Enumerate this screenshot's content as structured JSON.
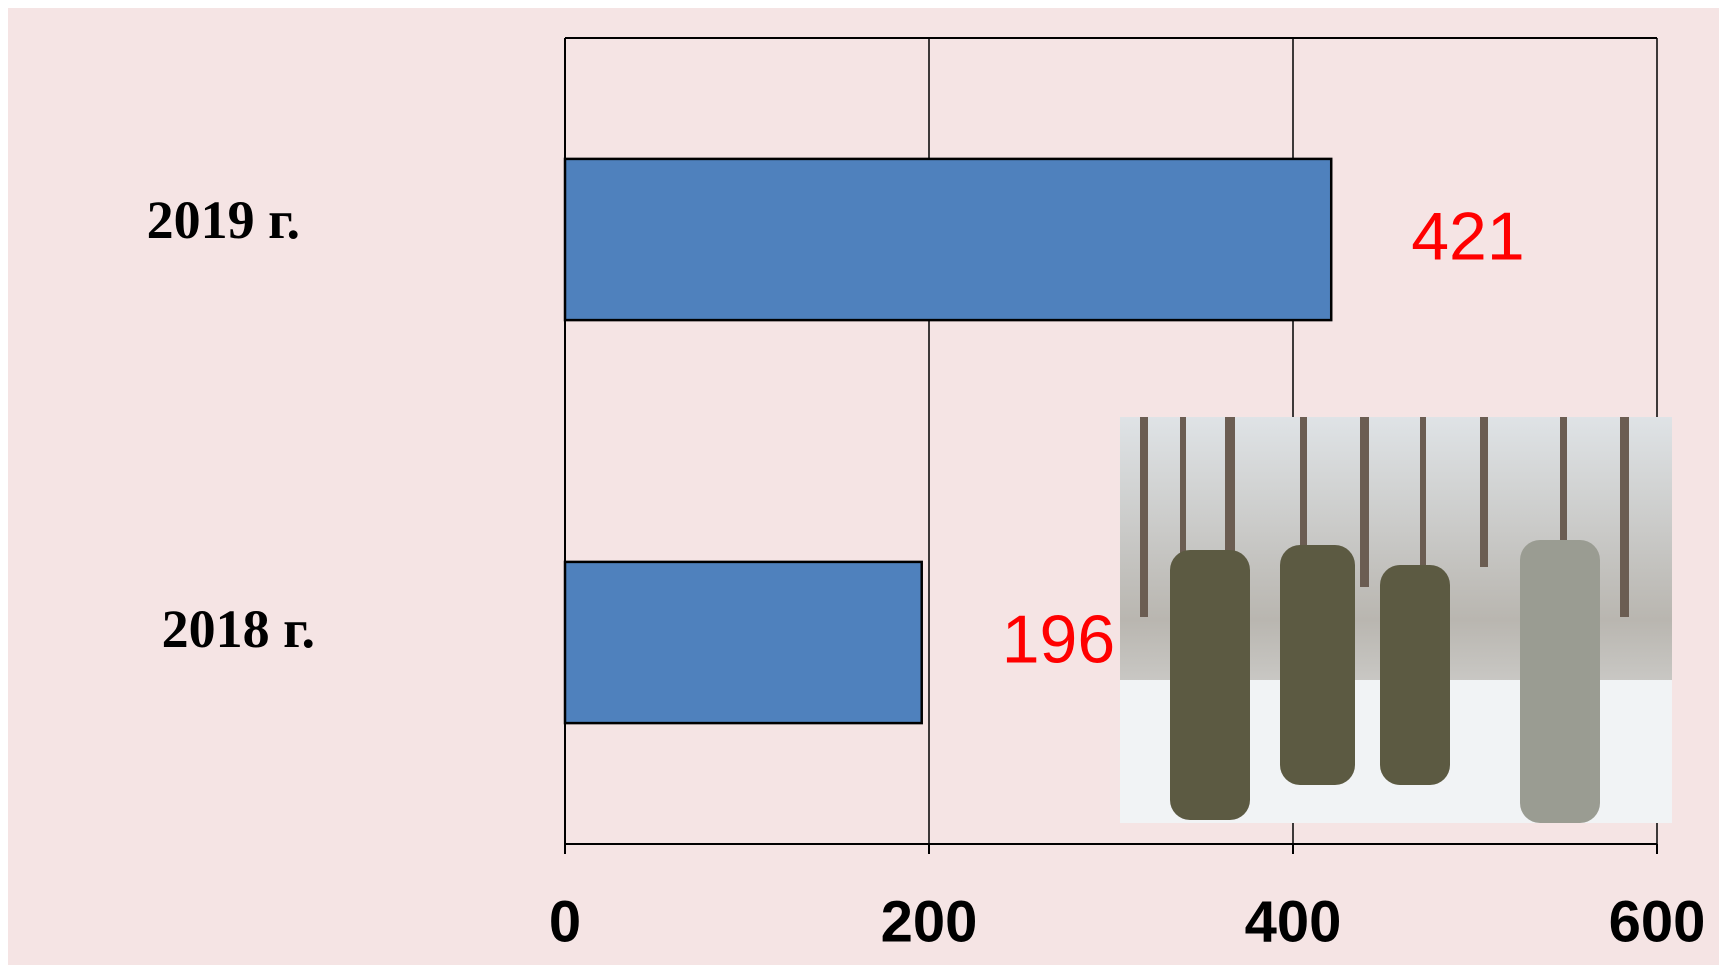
{
  "chart_data": {
    "type": "bar",
    "orientation": "horizontal",
    "categories": [
      "2019 г.",
      "2018 г."
    ],
    "values": [
      421,
      196
    ],
    "color": "#4f81bd",
    "label_color": "#ff0000",
    "xlim": [
      0,
      600
    ],
    "xticks": [
      0,
      200,
      400,
      600
    ],
    "grid": true
  }
}
